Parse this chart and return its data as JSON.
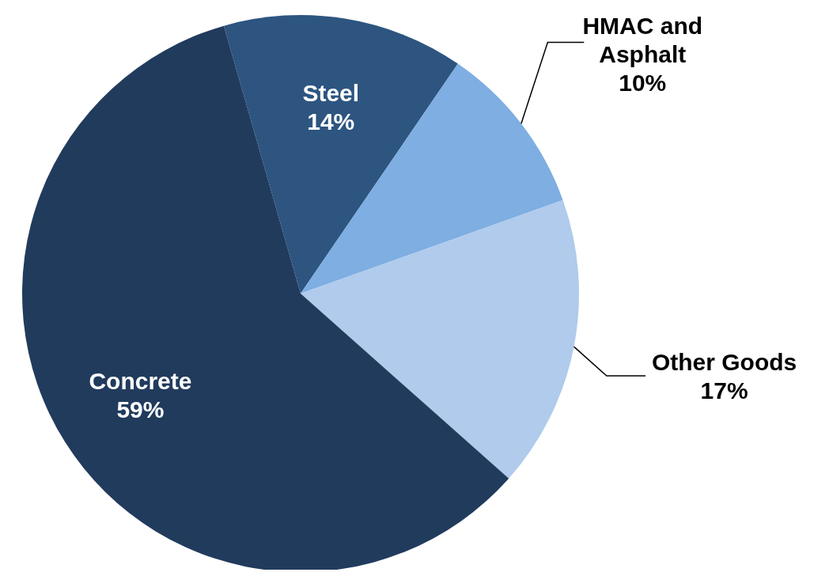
{
  "chart_data": {
    "type": "pie",
    "categories": [
      "Steel",
      "HMAC and Asphalt",
      "Other Goods",
      "Concrete"
    ],
    "values": [
      14,
      10,
      17,
      59
    ],
    "colors": [
      "#2d5580",
      "#7eaee2",
      "#b0cbeb",
      "#213b5d"
    ],
    "value_labels": [
      "14%",
      "10%",
      "17%",
      "59%"
    ]
  }
}
